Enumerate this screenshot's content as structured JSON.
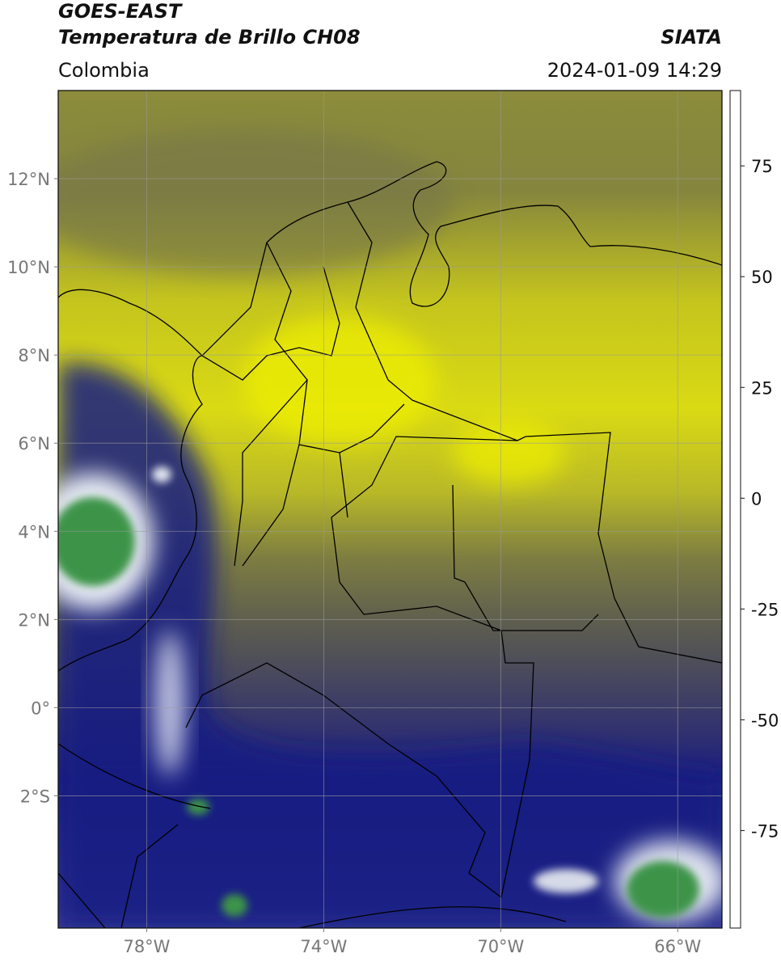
{
  "header": {
    "title": "GOES-EAST",
    "subtitle": "Temperatura de Brillo CH08",
    "source": "SIATA",
    "region": "Colombia",
    "datetime": "2024-01-09 14:29"
  },
  "map": {
    "xlim": [
      -80,
      -65
    ],
    "ylim": [
      -5,
      14
    ],
    "xticks": [
      {
        "value": -78,
        "label": "78°W"
      },
      {
        "value": -74,
        "label": "74°W"
      },
      {
        "value": -70,
        "label": "70°W"
      },
      {
        "value": -66,
        "label": "66°W"
      }
    ],
    "yticks": [
      {
        "value": 12,
        "label": "12°N"
      },
      {
        "value": 10,
        "label": "10°N"
      },
      {
        "value": 8,
        "label": "8°N"
      },
      {
        "value": 6,
        "label": "6°N"
      },
      {
        "value": 4,
        "label": "4°N"
      },
      {
        "value": 2,
        "label": "2°N"
      },
      {
        "value": 0,
        "label": "0°"
      },
      {
        "value": -2,
        "label": "2°S"
      }
    ],
    "grid": true
  },
  "colorbar": {
    "ylim": [
      -97,
      92
    ],
    "yticks": [
      75,
      50,
      25,
      0,
      -25,
      -50,
      -75
    ],
    "colormap": [
      {
        "value": -97,
        "color": "#ffffff"
      },
      {
        "value": -93,
        "color": "#ffffff"
      },
      {
        "value": -92.5,
        "color": "#00e0e0"
      },
      {
        "value": -80,
        "color": "#20a090"
      },
      {
        "value": -70,
        "color": "#2a7a30"
      },
      {
        "value": -60,
        "color": "#6aa050"
      },
      {
        "value": -52,
        "color": "#f4f4f4"
      },
      {
        "value": -40,
        "color": "#8080c0"
      },
      {
        "value": -28,
        "color": "#101080"
      },
      {
        "value": -25,
        "color": "#404060"
      },
      {
        "value": -20,
        "color": "#8a8a40"
      },
      {
        "value": -14,
        "color": "#eaea00"
      },
      {
        "value": -8,
        "color": "#f0c000"
      },
      {
        "value": -3,
        "color": "#f08000"
      },
      {
        "value": 0,
        "color": "#e03000"
      },
      {
        "value": 8,
        "color": "#e00000"
      },
      {
        "value": 8.1,
        "color": "#000000"
      },
      {
        "value": 92,
        "color": "#000000"
      }
    ]
  }
}
